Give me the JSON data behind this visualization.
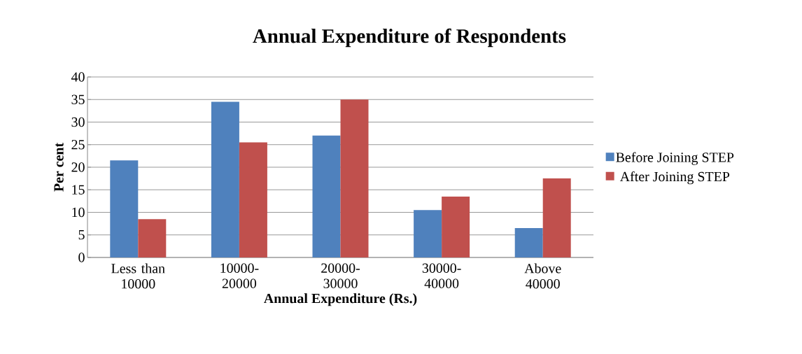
{
  "chart_data": {
    "type": "bar",
    "title": "Annual Expenditure of Respondents",
    "xlabel": "Annual Expenditure (Rs.)",
    "ylabel": "Per cent",
    "categories": [
      "Less than 10000",
      "10000-20000",
      "20000-30000",
      "30000-40000",
      "Above 40000"
    ],
    "series": [
      {
        "name": "Before Joining STEP",
        "color": "#4f81bd",
        "values": [
          21.5,
          34.5,
          27,
          10.5,
          6.5
        ]
      },
      {
        "name": "After Joining STEP",
        "color": "#c0504d",
        "values": [
          8.5,
          25.5,
          35,
          13.5,
          17.5
        ]
      }
    ],
    "ylim": [
      0,
      40
    ],
    "yticks": [
      0,
      5,
      10,
      15,
      20,
      25,
      30,
      35,
      40
    ],
    "grid": "y",
    "legend": "right"
  }
}
